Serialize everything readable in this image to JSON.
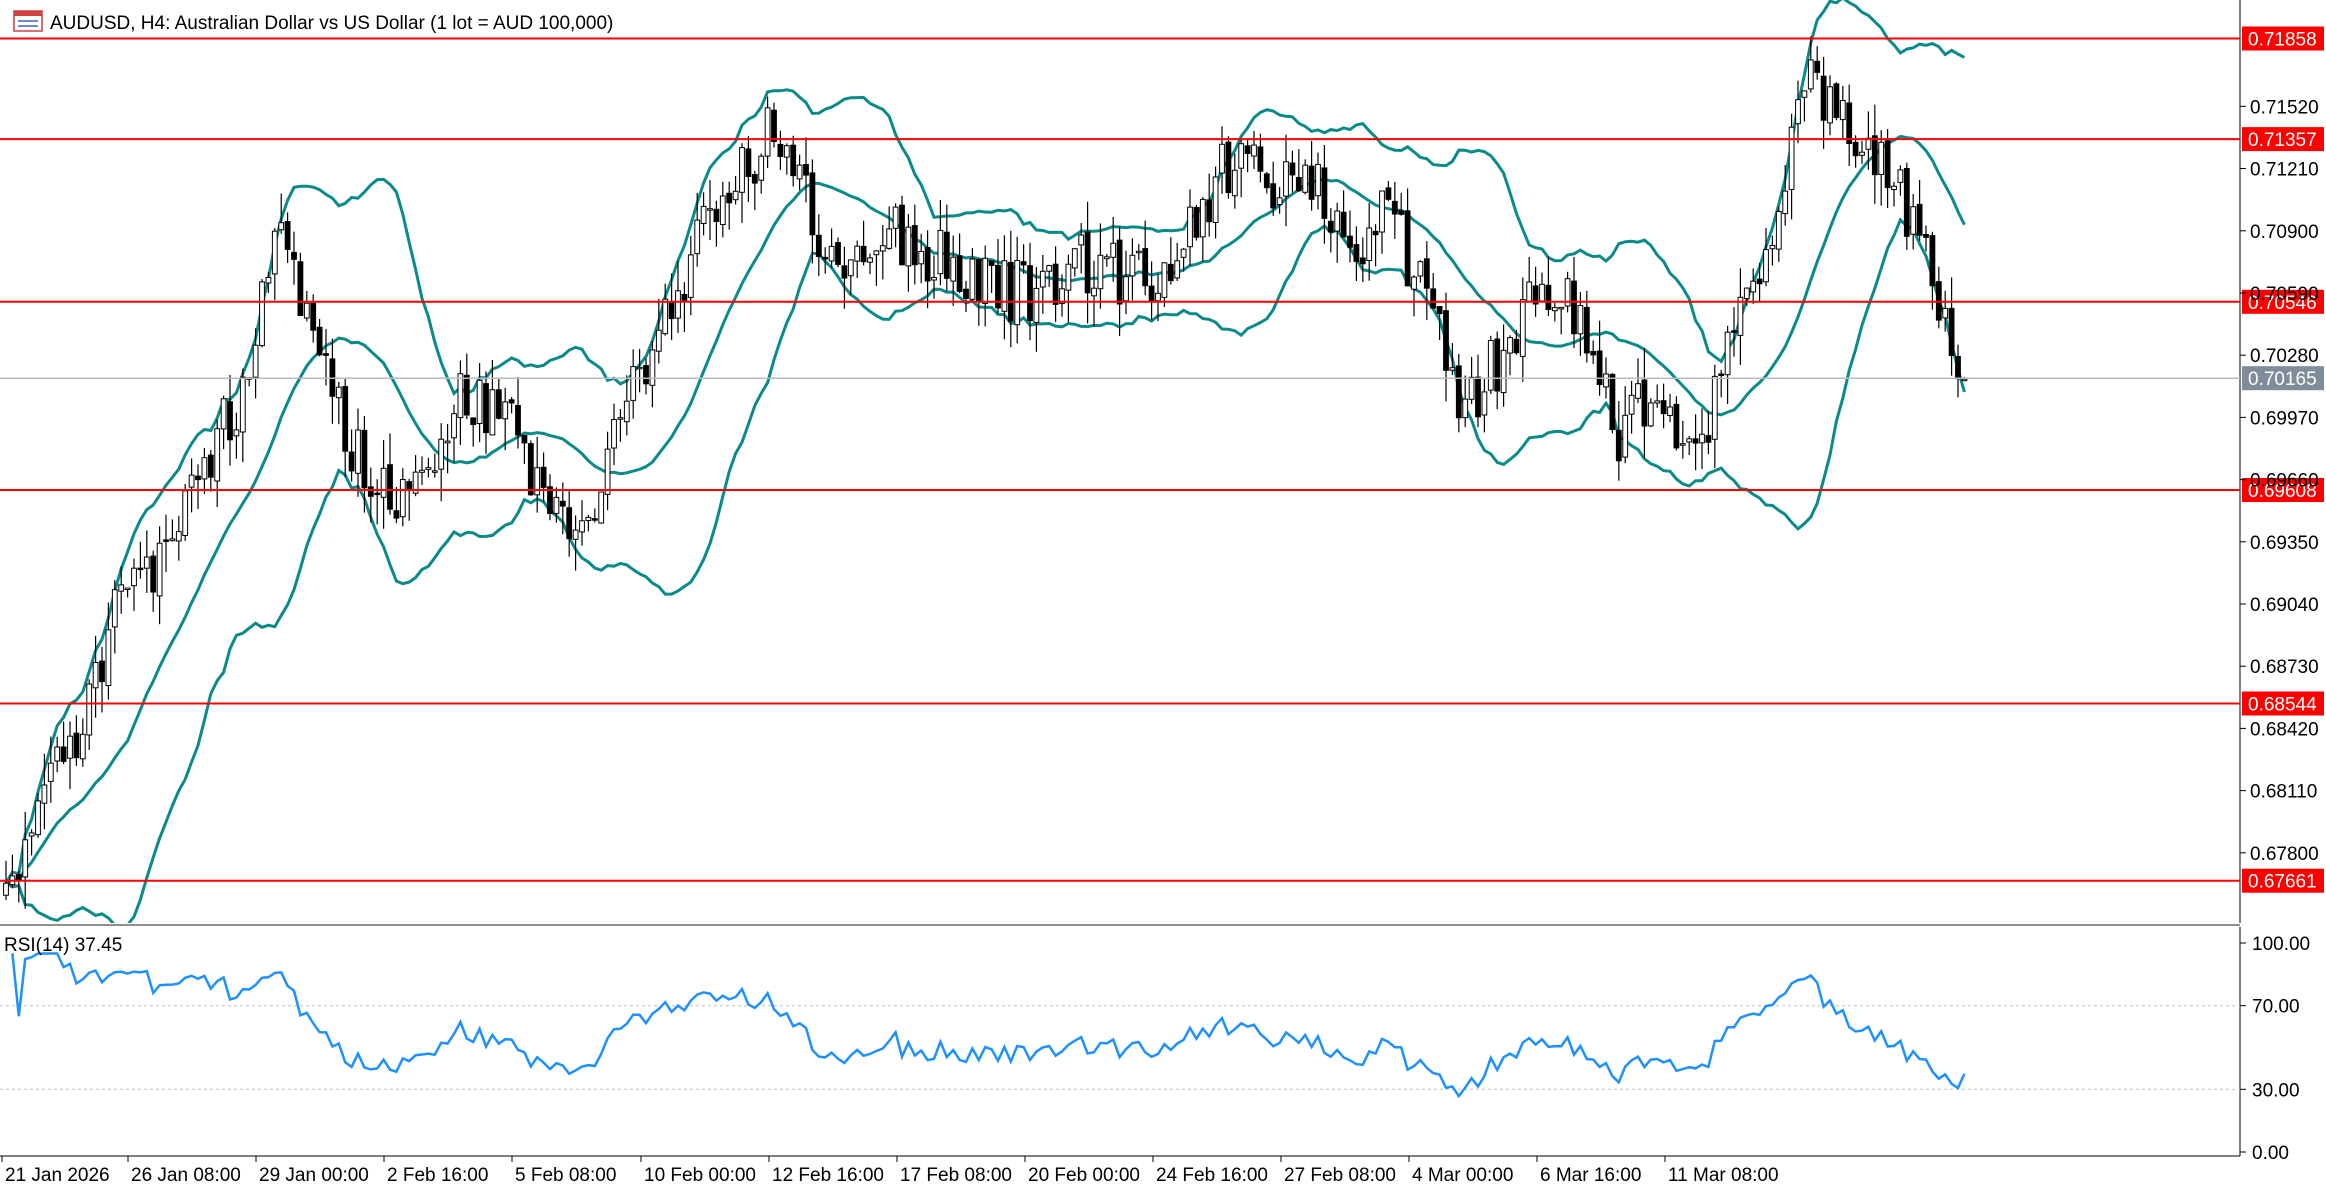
{
  "header": {
    "title": "AUDUSD, H4:  Australian Dollar vs US Dollar (1 lot = AUD 100,000)",
    "icon": "chart-window-icon"
  },
  "colors": {
    "bg": "#ffffff",
    "candle": "#000000",
    "bollinger": "#0b8a8a",
    "level_line": "#ff0000",
    "level_label_bg": "#ff0000",
    "current_label_bg": "#7f8c99",
    "current_line": "#b8bcc2",
    "rsi": "#1e90ff",
    "rsi_level": "#c0c0c0"
  },
  "chart_data": [
    {
      "type": "candlestick",
      "title": "AUDUSD, H4:  Australian Dollar vs US Dollar (1 lot = AUD 100,000)",
      "ylim": [
        0.6745,
        0.7205
      ],
      "y_ticks": [
        "0.71520",
        "0.71210",
        "0.70900",
        "0.70590",
        "0.70280",
        "0.69970",
        "0.69660",
        "0.69350",
        "0.69040",
        "0.68730",
        "0.68420",
        "0.68110",
        "0.67800"
      ],
      "x_ticks": [
        "21 Jan 2026",
        "26 Jan 08:00",
        "29 Jan 00:00",
        "2 Feb 16:00",
        "5 Feb 08:00",
        "10 Feb 00:00",
        "12 Feb 16:00",
        "17 Feb 08:00",
        "20 Feb 00:00",
        "24 Feb 16:00",
        "27 Feb 08:00",
        "4 Mar 00:00",
        "6 Mar 16:00",
        "11 Mar 08:00"
      ],
      "price_levels": [
        "0.71858",
        "0.71357",
        "0.70546",
        "0.69608",
        "0.68544",
        "0.67661"
      ],
      "current_price": "0.70165",
      "anchors": [
        [
          0,
          0.6765
        ],
        [
          6,
          0.6805
        ],
        [
          12,
          0.6845
        ],
        [
          18,
          0.6912
        ],
        [
          24,
          0.692
        ],
        [
          30,
          0.6968
        ],
        [
          36,
          0.7002
        ],
        [
          42,
          0.7088
        ],
        [
          48,
          0.704
        ],
        [
          54,
          0.6985
        ],
        [
          60,
          0.6955
        ],
        [
          66,
          0.6975
        ],
        [
          72,
          0.701
        ],
        [
          78,
          0.7
        ],
        [
          84,
          0.696
        ],
        [
          90,
          0.6935
        ],
        [
          96,
          0.6995
        ],
        [
          102,
          0.704
        ],
        [
          108,
          0.7085
        ],
        [
          114,
          0.7115
        ],
        [
          120,
          0.714
        ],
        [
          126,
          0.7095
        ],
        [
          132,
          0.7075
        ],
        [
          138,
          0.709
        ],
        [
          144,
          0.7078
        ],
        [
          150,
          0.7068
        ],
        [
          156,
          0.7062
        ],
        [
          162,
          0.7055
        ],
        [
          168,
          0.7075
        ],
        [
          174,
          0.7068
        ],
        [
          180,
          0.706
        ],
        [
          186,
          0.7095
        ],
        [
          192,
          0.713
        ],
        [
          198,
          0.7105
        ],
        [
          204,
          0.7118
        ],
        [
          210,
          0.7085
        ],
        [
          216,
          0.7098
        ],
        [
          222,
          0.7055
        ],
        [
          228,
          0.7
        ],
        [
          234,
          0.703
        ],
        [
          240,
          0.7068
        ],
        [
          246,
          0.7045
        ],
        [
          252,
          0.699
        ],
        [
          258,
          0.701
        ],
        [
          264,
          0.6972
        ],
        [
          270,
          0.7035
        ],
        [
          276,
          0.709
        ],
        [
          282,
          0.717
        ],
        [
          288,
          0.714
        ],
        [
          294,
          0.7125
        ],
        [
          300,
          0.708
        ],
        [
          306,
          0.7016
        ]
      ],
      "candle_count": 307,
      "bollinger_bands": {
        "period": 20,
        "middle": "moving average of close",
        "bands": "middle ± 2 standard deviations"
      }
    },
    {
      "type": "line",
      "label": "RSI(14) 37.45",
      "ylim": [
        0,
        100
      ],
      "y_ticks": [
        "100.00",
        "70.00",
        "30.00",
        "0.00"
      ],
      "levels": [
        70,
        30
      ],
      "period": 14,
      "last_value": 37.45
    }
  ]
}
